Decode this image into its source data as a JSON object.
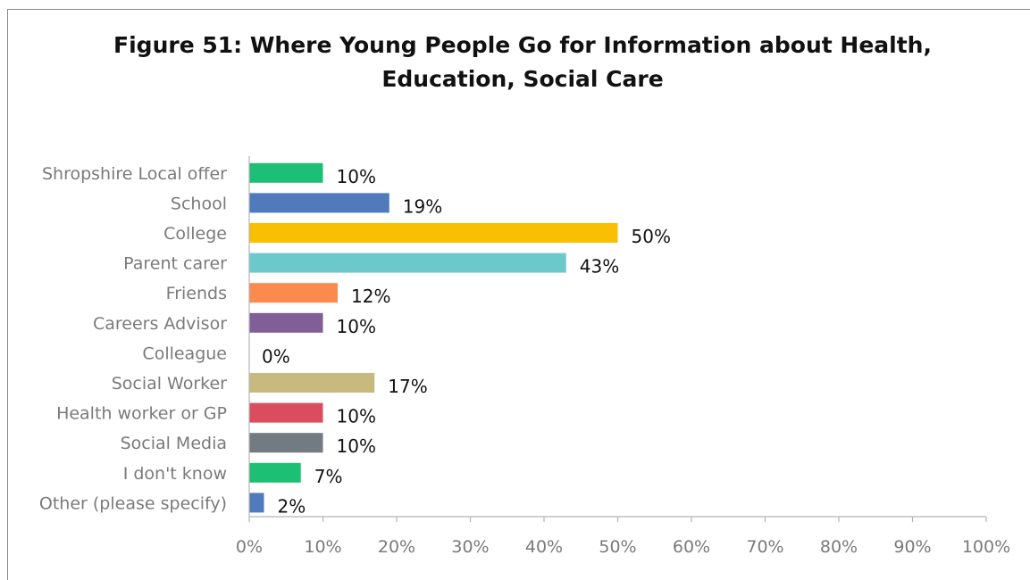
{
  "chart_data": {
    "type": "bar",
    "orientation": "horizontal",
    "title_lines": [
      "Figure 51: Where Young People Go for Information about Health,",
      "Education, Social Care"
    ],
    "categories": [
      "Shropshire Local offer",
      "School",
      "College",
      "Parent carer",
      "Friends",
      "Careers Advisor",
      "Colleague",
      "Social Worker",
      "Health worker or GP",
      "Social Media",
      "I don't know",
      "Other (please specify)"
    ],
    "values": [
      10,
      19,
      50,
      43,
      12,
      10,
      0,
      17,
      10,
      10,
      7,
      2
    ],
    "data_labels": [
      "10%",
      "19%",
      "50%",
      "43%",
      "12%",
      "10%",
      "0%",
      "17%",
      "10%",
      "10%",
      "7%",
      "2%"
    ],
    "colors": [
      "#1dbf74",
      "#4f7abb",
      "#f9bf02",
      "#6cc9cb",
      "#fb8a4f",
      "#7f5f96",
      "#b8b8b8",
      "#c8ba7e",
      "#dc4c5f",
      "#727a82",
      "#1dbf74",
      "#4f7abb"
    ],
    "xlim": [
      0,
      100
    ],
    "x_ticks": [
      0,
      10,
      20,
      30,
      40,
      50,
      60,
      70,
      80,
      90,
      100
    ],
    "x_tick_labels": [
      "0%",
      "10%",
      "20%",
      "30%",
      "40%",
      "50%",
      "60%",
      "70%",
      "80%",
      "90%",
      "100%"
    ],
    "grid": false,
    "legend": "none"
  }
}
